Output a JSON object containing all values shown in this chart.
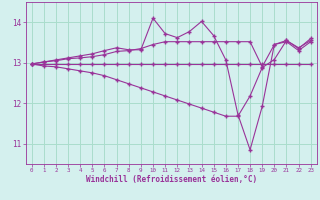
{
  "background_color": "#d4f0ee",
  "grid_color": "#aaddcc",
  "line_color": "#993399",
  "marker": "+",
  "xlabel": "Windchill (Refroidissement éolien,°C)",
  "xlabel_color": "#993399",
  "tick_color": "#993399",
  "spine_color": "#993399",
  "xlim": [
    -0.5,
    23.5
  ],
  "ylim": [
    10.5,
    14.5
  ],
  "yticks": [
    11,
    12,
    13,
    14
  ],
  "xticks": [
    0,
    1,
    2,
    3,
    4,
    5,
    6,
    7,
    8,
    9,
    10,
    11,
    12,
    13,
    14,
    15,
    16,
    17,
    18,
    19,
    20,
    21,
    22,
    23
  ],
  "lines": [
    {
      "x": [
        0,
        1,
        2,
        3,
        4,
        5,
        6,
        7,
        8,
        9,
        10,
        11,
        12,
        13,
        14,
        15,
        16,
        17,
        18,
        19,
        20,
        21,
        22,
        23
      ],
      "y": [
        12.97,
        12.97,
        12.97,
        12.97,
        12.97,
        12.97,
        12.97,
        12.97,
        12.97,
        12.97,
        12.97,
        12.97,
        12.97,
        12.97,
        12.97,
        12.97,
        12.97,
        12.97,
        12.97,
        12.97,
        12.97,
        12.97,
        12.97,
        12.97
      ]
    },
    {
      "x": [
        0,
        1,
        2,
        3,
        4,
        5,
        6,
        7,
        8,
        9,
        10,
        11,
        12,
        13,
        14,
        15,
        16,
        17,
        18,
        19,
        20,
        21,
        22,
        23
      ],
      "y": [
        12.97,
        13.02,
        13.05,
        13.1,
        13.12,
        13.15,
        13.2,
        13.28,
        13.3,
        13.35,
        13.45,
        13.52,
        13.52,
        13.52,
        13.52,
        13.52,
        13.52,
        13.52,
        13.52,
        12.9,
        13.45,
        13.52,
        13.3,
        13.52
      ]
    },
    {
      "x": [
        0,
        1,
        2,
        3,
        4,
        5,
        6,
        7,
        8,
        9,
        10,
        11,
        12,
        13,
        14,
        15,
        16,
        17,
        18,
        19,
        20,
        21,
        22,
        23
      ],
      "y": [
        12.97,
        13.02,
        13.07,
        13.12,
        13.17,
        13.22,
        13.3,
        13.37,
        13.32,
        13.32,
        14.1,
        13.72,
        13.62,
        13.77,
        14.02,
        13.67,
        13.07,
        11.72,
        10.85,
        11.92,
        13.45,
        13.55,
        13.37,
        13.55
      ]
    },
    {
      "x": [
        0,
        1,
        2,
        3,
        4,
        5,
        6,
        7,
        8,
        9,
        10,
        11,
        12,
        13,
        14,
        15,
        16,
        17,
        18,
        19,
        20,
        21,
        22,
        23
      ],
      "y": [
        12.97,
        12.92,
        12.9,
        12.85,
        12.8,
        12.75,
        12.68,
        12.58,
        12.48,
        12.38,
        12.28,
        12.18,
        12.08,
        11.98,
        11.88,
        11.78,
        11.68,
        11.68,
        12.18,
        12.88,
        13.08,
        13.55,
        13.35,
        13.6
      ]
    }
  ]
}
